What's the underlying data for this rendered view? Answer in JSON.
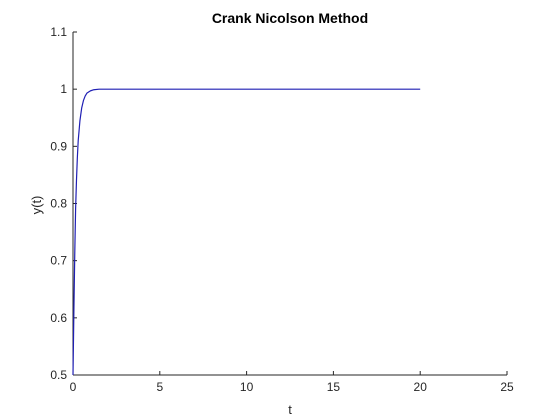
{
  "chart_data": {
    "type": "line",
    "title": "Crank Nicolson Method",
    "xlabel": "t",
    "ylabel": "y(t)",
    "xlim": [
      0,
      25
    ],
    "ylim": [
      0.5,
      1.1
    ],
    "xticks": [
      0,
      5,
      10,
      15,
      20,
      25
    ],
    "yticks": [
      0.5,
      0.6,
      0.7,
      0.8,
      0.9,
      1,
      1.1
    ],
    "xtick_labels": [
      "0",
      "5",
      "10",
      "15",
      "20",
      "25"
    ],
    "ytick_labels": [
      "0.5",
      "0.6",
      "0.7",
      "0.8",
      "0.9",
      "1",
      "1.1"
    ],
    "grid": false,
    "series": [
      {
        "color": "#1f1fb4",
        "x": [
          0,
          0.05,
          0.1,
          0.15,
          0.2,
          0.25,
          0.3,
          0.4,
          0.5,
          0.6,
          0.7,
          0.8,
          1.0,
          1.2,
          1.5,
          2.0,
          3.0,
          5.0,
          10.0,
          15.0,
          20.0
        ],
        "y": [
          0.5,
          0.61,
          0.71,
          0.79,
          0.84,
          0.88,
          0.91,
          0.945,
          0.967,
          0.98,
          0.988,
          0.993,
          0.997,
          0.999,
          1.0,
          1.0,
          1.0,
          1.0,
          1.0,
          1.0,
          1.0
        ]
      }
    ]
  }
}
